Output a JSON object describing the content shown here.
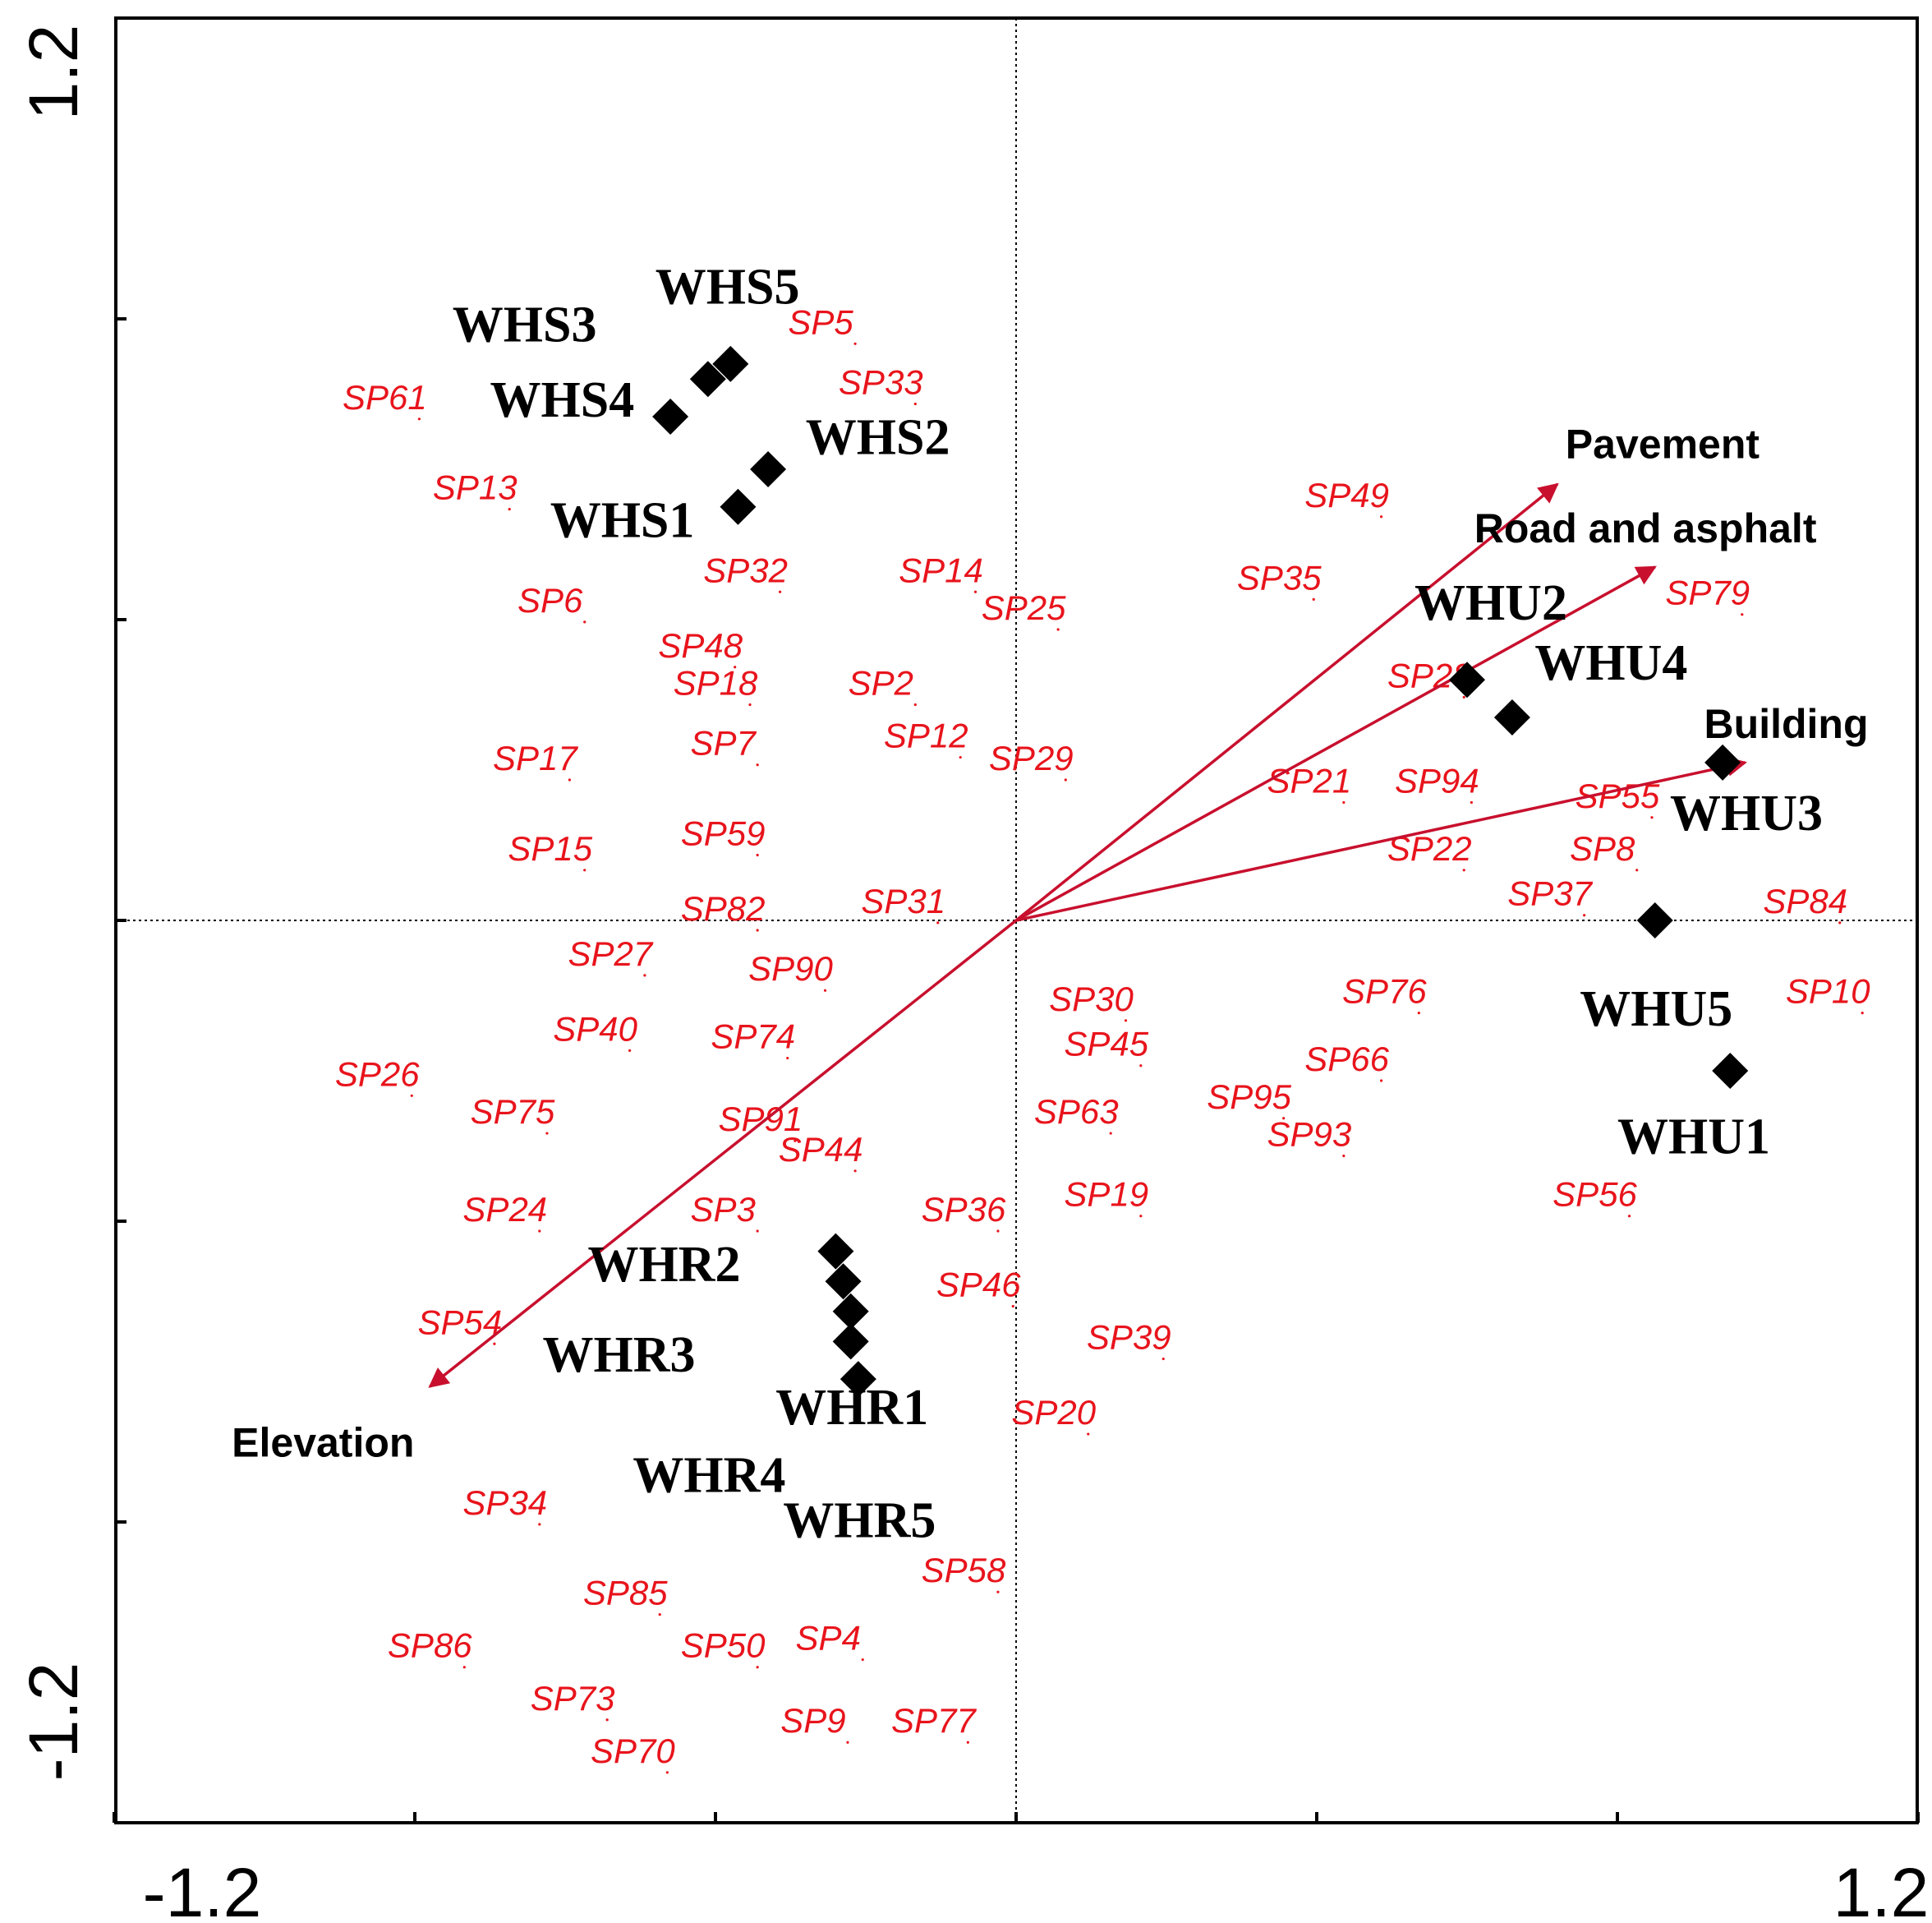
{
  "chart_data": {
    "type": "scatter",
    "xlim": [
      -1.2,
      1.2
    ],
    "ylim": [
      -1.2,
      1.2
    ],
    "x_tick_labels": [
      "-1.2",
      "1.2"
    ],
    "y_tick_labels": [
      "1.2",
      "-1.2"
    ],
    "colors": {
      "species": "#e8141c",
      "arrow": "#c8102e",
      "site": "#000000"
    },
    "environmental_vectors": [
      {
        "name": "Pavement",
        "x": 0.72,
        "y": 0.58
      },
      {
        "name": "Road and asphalt",
        "x": 0.85,
        "y": 0.47
      },
      {
        "name": "Building",
        "x": 0.97,
        "y": 0.21
      },
      {
        "name": "Elevation",
        "x": -0.78,
        "y": -0.62
      }
    ],
    "sites": [
      {
        "name": "WHS5",
        "x": -0.38,
        "y": 0.74
      },
      {
        "name": "WHS3",
        "x": -0.41,
        "y": 0.72
      },
      {
        "name": "WHS4",
        "x": -0.46,
        "y": 0.67
      },
      {
        "name": "WHS2",
        "x": -0.33,
        "y": 0.6
      },
      {
        "name": "WHS1",
        "x": -0.37,
        "y": 0.55
      },
      {
        "name": "WHU2",
        "x": 0.6,
        "y": 0.32
      },
      {
        "name": "WHU4",
        "x": 0.66,
        "y": 0.27
      },
      {
        "name": "WHU3",
        "x": 0.94,
        "y": 0.21
      },
      {
        "name": "WHU5",
        "x": 0.85,
        "y": 0.0
      },
      {
        "name": "WHU1",
        "x": 0.95,
        "y": -0.2
      },
      {
        "name": "WHR2",
        "x": -0.24,
        "y": -0.44
      },
      {
        "name": "WHR3",
        "x": -0.23,
        "y": -0.48
      },
      {
        "name": "WHR1",
        "x": -0.22,
        "y": -0.52
      },
      {
        "name": "WHR4",
        "x": -0.22,
        "y": -0.56
      },
      {
        "name": "WHR5",
        "x": -0.21,
        "y": -0.61
      }
    ],
    "species": [
      {
        "name": "SP5",
        "x": -0.26,
        "y": 0.78
      },
      {
        "name": "SP33",
        "x": -0.18,
        "y": 0.7
      },
      {
        "name": "SP61",
        "x": -0.84,
        "y": 0.68
      },
      {
        "name": "SP13",
        "x": -0.72,
        "y": 0.56
      },
      {
        "name": "SP49",
        "x": 0.44,
        "y": 0.55
      },
      {
        "name": "SP14",
        "x": -0.1,
        "y": 0.45
      },
      {
        "name": "SP32",
        "x": -0.36,
        "y": 0.45
      },
      {
        "name": "SP35",
        "x": 0.35,
        "y": 0.44
      },
      {
        "name": "SP6",
        "x": -0.62,
        "y": 0.41
      },
      {
        "name": "SP25",
        "x": 0.01,
        "y": 0.4
      },
      {
        "name": "SP79",
        "x": 0.92,
        "y": 0.42
      },
      {
        "name": "SP48",
        "x": -0.42,
        "y": 0.35
      },
      {
        "name": "SP18",
        "x": -0.4,
        "y": 0.3
      },
      {
        "name": "SP2",
        "x": -0.18,
        "y": 0.3
      },
      {
        "name": "SP28",
        "x": 0.55,
        "y": 0.31
      },
      {
        "name": "SP7",
        "x": -0.39,
        "y": 0.22
      },
      {
        "name": "SP12",
        "x": -0.12,
        "y": 0.23
      },
      {
        "name": "SP17",
        "x": -0.64,
        "y": 0.2
      },
      {
        "name": "SP29",
        "x": 0.02,
        "y": 0.2
      },
      {
        "name": "SP21",
        "x": 0.39,
        "y": 0.17
      },
      {
        "name": "SP94",
        "x": 0.56,
        "y": 0.17
      },
      {
        "name": "SP55",
        "x": 0.8,
        "y": 0.15
      },
      {
        "name": "SP59",
        "x": -0.39,
        "y": 0.1
      },
      {
        "name": "SP15",
        "x": -0.62,
        "y": 0.08
      },
      {
        "name": "SP22",
        "x": 0.55,
        "y": 0.08
      },
      {
        "name": "SP8",
        "x": 0.78,
        "y": 0.08
      },
      {
        "name": "SP82",
        "x": -0.39,
        "y": 0.0
      },
      {
        "name": "SP31",
        "x": -0.15,
        "y": 0.01
      },
      {
        "name": "SP37",
        "x": 0.71,
        "y": 0.02
      },
      {
        "name": "SP84",
        "x": 1.05,
        "y": 0.01
      },
      {
        "name": "SP27",
        "x": -0.54,
        "y": -0.06
      },
      {
        "name": "SP90",
        "x": -0.3,
        "y": -0.08
      },
      {
        "name": "SP30",
        "x": 0.1,
        "y": -0.12
      },
      {
        "name": "SP76",
        "x": 0.49,
        "y": -0.11
      },
      {
        "name": "SP10",
        "x": 1.08,
        "y": -0.11
      },
      {
        "name": "SP40",
        "x": -0.56,
        "y": -0.16
      },
      {
        "name": "SP74",
        "x": -0.35,
        "y": -0.17
      },
      {
        "name": "SP45",
        "x": 0.12,
        "y": -0.18
      },
      {
        "name": "SP66",
        "x": 0.44,
        "y": -0.2
      },
      {
        "name": "SP26",
        "x": -0.85,
        "y": -0.22
      },
      {
        "name": "SP95",
        "x": 0.31,
        "y": -0.25
      },
      {
        "name": "SP75",
        "x": -0.67,
        "y": -0.27
      },
      {
        "name": "SP63",
        "x": 0.08,
        "y": -0.27
      },
      {
        "name": "SP91",
        "x": -0.34,
        "y": -0.28
      },
      {
        "name": "SP93",
        "x": 0.39,
        "y": -0.3
      },
      {
        "name": "SP44",
        "x": -0.26,
        "y": -0.32
      },
      {
        "name": "SP19",
        "x": 0.12,
        "y": -0.38
      },
      {
        "name": "SP56",
        "x": 0.77,
        "y": -0.38
      },
      {
        "name": "SP24",
        "x": -0.68,
        "y": -0.4
      },
      {
        "name": "SP3",
        "x": -0.39,
        "y": -0.4
      },
      {
        "name": "SP36",
        "x": -0.07,
        "y": -0.4
      },
      {
        "name": "SP46",
        "x": -0.05,
        "y": -0.5
      },
      {
        "name": "SP54",
        "x": -0.74,
        "y": -0.55
      },
      {
        "name": "SP39",
        "x": 0.15,
        "y": -0.57
      },
      {
        "name": "SP20",
        "x": 0.05,
        "y": -0.67
      },
      {
        "name": "SP34",
        "x": -0.68,
        "y": -0.79
      },
      {
        "name": "SP58",
        "x": -0.07,
        "y": -0.88
      },
      {
        "name": "SP85",
        "x": -0.52,
        "y": -0.91
      },
      {
        "name": "SP86",
        "x": -0.78,
        "y": -0.98
      },
      {
        "name": "SP50",
        "x": -0.39,
        "y": -0.98
      },
      {
        "name": "SP4",
        "x": -0.25,
        "y": -0.97
      },
      {
        "name": "SP73",
        "x": -0.59,
        "y": -1.05
      },
      {
        "name": "SP9",
        "x": -0.27,
        "y": -1.08
      },
      {
        "name": "SP77",
        "x": -0.11,
        "y": -1.08
      },
      {
        "name": "SP70",
        "x": -0.51,
        "y": -1.12
      }
    ]
  }
}
